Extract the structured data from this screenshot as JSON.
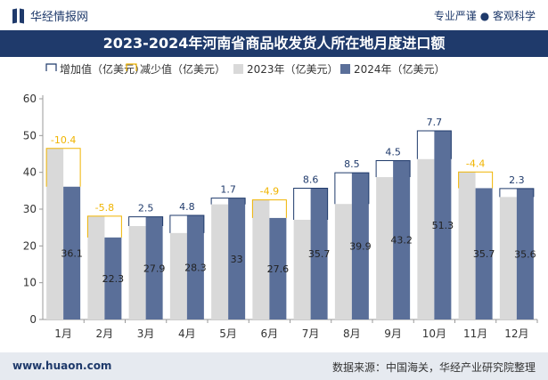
{
  "header": {
    "brand_name": "华经情报网",
    "tagline": "专业严谨 ● 客观科学"
  },
  "footer": {
    "site": "www.huaon.com",
    "source": "数据来源：中国海关，华经产业研究院整理"
  },
  "chart_data": {
    "type": "bar",
    "title": "2023-2024年河南省商品收发货人所在地月度进口额",
    "categories": [
      "1月",
      "2月",
      "3月",
      "4月",
      "5月",
      "6月",
      "7月",
      "8月",
      "9月",
      "10月",
      "11月",
      "12月"
    ],
    "series": [
      {
        "name": "2023年（亿美元）",
        "values": [
          46.5,
          28.1,
          25.4,
          23.5,
          31.3,
          32.5,
          27.1,
          31.4,
          38.7,
          43.6,
          40.1,
          33.3
        ]
      },
      {
        "name": "2024年（亿美元）",
        "values": [
          36.1,
          22.3,
          27.9,
          28.3,
          33,
          27.6,
          35.7,
          39.9,
          43.2,
          51.3,
          35.7,
          35.6
        ]
      }
    ],
    "change_labels": [
      "-10.4",
      "-5.8",
      "2.5",
      "4.8",
      "1.7",
      "-4.9",
      "8.6",
      "8.5",
      "4.5",
      "7.7",
      "-4.4",
      "2.3"
    ],
    "legend": [
      {
        "name": "增加值（亿美元）",
        "color": "#1f3a6b",
        "style": "outline"
      },
      {
        "name": "减少值（亿美元）",
        "color": "#f0b400",
        "style": "outline"
      },
      {
        "name": "2023年（亿美元）",
        "color": "#d9d9d9",
        "style": "fill"
      },
      {
        "name": "2024年（亿美元）",
        "color": "#5a6f99",
        "style": "fill"
      }
    ],
    "legend_position": "top-left",
    "ylim": [
      0,
      60
    ],
    "yticks": [
      0,
      10,
      20,
      30,
      40,
      50,
      60
    ],
    "grid": false,
    "colors": {
      "bar_2023": "#d9d9d9",
      "bar_2024": "#5a6f99",
      "increase": "#1f3a6b",
      "decrease": "#f0b400",
      "increase_label": "#1f3a6b",
      "decrease_label": "#f0b400"
    }
  }
}
